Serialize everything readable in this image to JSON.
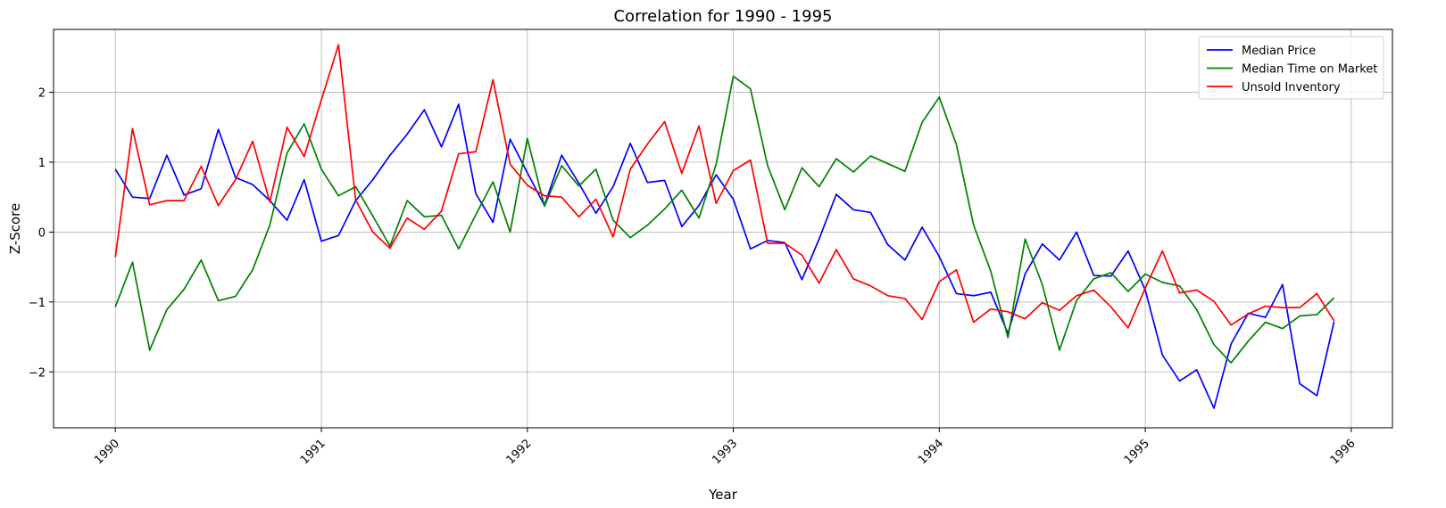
{
  "chart_data": {
    "type": "line",
    "title": "Correlation for 1990 - 1995",
    "xlabel": "Year",
    "ylabel": "Z-Score",
    "xlim": [
      1989.7,
      1996.2
    ],
    "ylim": [
      -2.8,
      2.9
    ],
    "x_ticks": [
      1990,
      1991,
      1992,
      1993,
      1994,
      1995,
      1996
    ],
    "x_tick_labels": [
      "1990",
      "1991",
      "1992",
      "1993",
      "1994",
      "1995",
      "1996"
    ],
    "y_ticks": [
      -2,
      -1,
      0,
      1,
      2
    ],
    "y_tick_labels": [
      "−2",
      "−1",
      "0",
      "1",
      "2"
    ],
    "grid": true,
    "legend_position": "top-right",
    "x_start_year": 1990,
    "x_step_years": 0.083333,
    "series": [
      {
        "name": "Median Price",
        "color": "#0000ff",
        "values": [
          0.9,
          0.5,
          0.48,
          1.1,
          0.53,
          0.62,
          1.47,
          0.78,
          0.68,
          0.45,
          0.17,
          0.75,
          -0.13,
          -0.05,
          0.45,
          0.75,
          1.1,
          1.4,
          1.75,
          1.22,
          1.83,
          0.55,
          0.14,
          1.33,
          0.85,
          0.38,
          1.1,
          0.7,
          0.27,
          0.65,
          1.27,
          0.71,
          0.74,
          0.08,
          0.38,
          0.82,
          0.47,
          -0.24,
          -0.12,
          -0.15,
          -0.68,
          -0.1,
          0.54,
          0.32,
          0.28,
          -0.18,
          -0.4,
          0.07,
          -0.35,
          -0.88,
          -0.91,
          -0.86,
          -1.45,
          -0.6,
          -0.17,
          -0.4,
          0.0,
          -0.62,
          -0.63,
          -0.27,
          -0.83,
          -1.76,
          -2.13,
          -1.97,
          -2.52,
          -1.6,
          -1.16,
          -1.22,
          -0.75,
          -2.17,
          -2.34,
          -1.28
        ]
      },
      {
        "name": "Median Time on Market",
        "color": "#008000",
        "values": [
          -1.07,
          -0.43,
          -1.69,
          -1.11,
          -0.82,
          -0.4,
          -0.98,
          -0.92,
          -0.54,
          0.1,
          1.13,
          1.55,
          0.9,
          0.52,
          0.65,
          0.23,
          -0.2,
          0.45,
          0.22,
          0.24,
          -0.24,
          0.25,
          0.72,
          0.0,
          1.34,
          0.37,
          0.95,
          0.66,
          0.9,
          0.17,
          -0.08,
          0.1,
          0.33,
          0.6,
          0.2,
          0.97,
          2.23,
          2.05,
          0.95,
          0.32,
          0.92,
          0.65,
          1.05,
          0.86,
          1.09,
          0.98,
          0.87,
          1.57,
          1.93,
          1.25,
          0.1,
          -0.56,
          -1.51,
          -0.1,
          -0.75,
          -1.69,
          -0.98,
          -0.67,
          -0.58,
          -0.85,
          -0.6,
          -0.72,
          -0.77,
          -1.11,
          -1.61,
          -1.87,
          -1.56,
          -1.29,
          -1.38,
          -1.2,
          -1.18,
          -0.94
        ]
      },
      {
        "name": "Unsold Inventory",
        "color": "#ff0000",
        "values": [
          -0.36,
          1.48,
          0.39,
          0.45,
          0.45,
          0.94,
          0.38,
          0.75,
          1.3,
          0.43,
          1.5,
          1.08,
          1.89,
          2.68,
          0.46,
          0.0,
          -0.23,
          0.2,
          0.04,
          0.3,
          1.12,
          1.15,
          2.18,
          0.97,
          0.67,
          0.52,
          0.5,
          0.22,
          0.47,
          -0.07,
          0.9,
          1.26,
          1.58,
          0.84,
          1.52,
          0.41,
          0.88,
          1.03,
          -0.16,
          -0.16,
          -0.33,
          -0.73,
          -0.25,
          -0.67,
          -0.77,
          -0.91,
          -0.95,
          -1.25,
          -0.71,
          -0.54,
          -1.29,
          -1.1,
          -1.14,
          -1.24,
          -1.01,
          -1.12,
          -0.91,
          -0.83,
          -1.07,
          -1.37,
          -0.8,
          -0.27,
          -0.87,
          -0.83,
          -0.99,
          -1.33,
          -1.17,
          -1.06,
          -1.08,
          -1.08,
          -0.88,
          -1.27
        ]
      }
    ]
  }
}
